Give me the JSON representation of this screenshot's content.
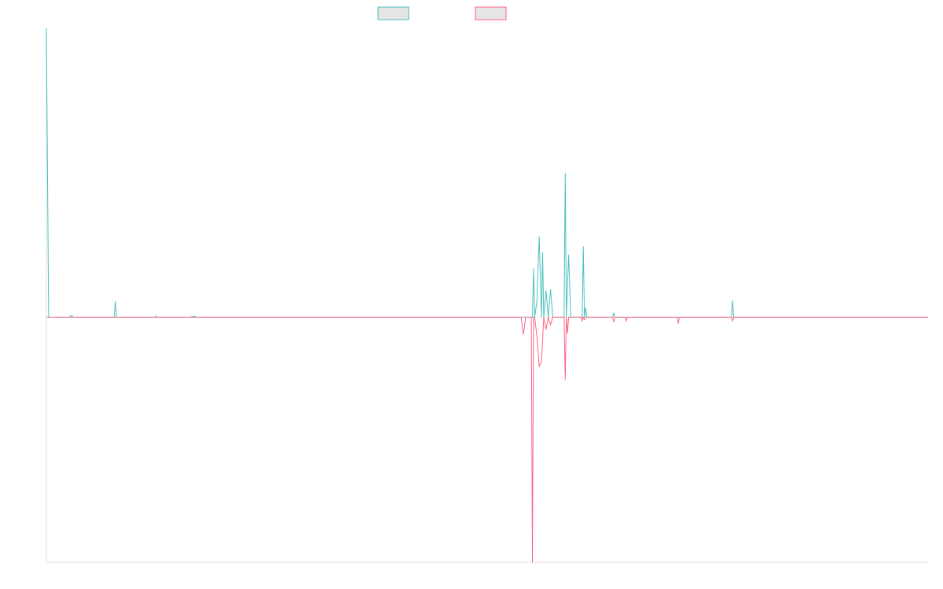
{
  "chart_data": {
    "type": "line",
    "title": "",
    "xlabel": "",
    "ylabel": "",
    "grid": false,
    "legend": "top-center",
    "x_count": 390,
    "ylim": [
      -1.0,
      1.18
    ],
    "series": [
      {
        "name": "",
        "color": "#4bc0c0",
        "points": [
          [
            0,
            1.18
          ],
          [
            1,
            0
          ],
          [
            10,
            0
          ],
          [
            11,
            0.008
          ],
          [
            12,
            0
          ],
          [
            30,
            0
          ],
          [
            30.5,
            0.065
          ],
          [
            31,
            0
          ],
          [
            48,
            0
          ],
          [
            48.5,
            0.005
          ],
          [
            49,
            0
          ],
          [
            64,
            0
          ],
          [
            64.5,
            0.005
          ],
          [
            65,
            0
          ],
          [
            65.5,
            0.005
          ],
          [
            66,
            0
          ],
          [
            215,
            0
          ],
          [
            215.5,
            0.2
          ],
          [
            216,
            0
          ],
          [
            217,
            0.065
          ],
          [
            218,
            0.33
          ],
          [
            219,
            0
          ],
          [
            219.5,
            0.265
          ],
          [
            220,
            0
          ],
          [
            221,
            0.11
          ],
          [
            222,
            0
          ],
          [
            223,
            0.115
          ],
          [
            224,
            0
          ],
          [
            229,
            0
          ],
          [
            229.5,
            0.59
          ],
          [
            230,
            0
          ],
          [
            231,
            0.255
          ],
          [
            232,
            0
          ],
          [
            237,
            0
          ],
          [
            237.5,
            0.29
          ],
          [
            238,
            0
          ],
          [
            238.5,
            0.04
          ],
          [
            239,
            0
          ],
          [
            250.5,
            0
          ],
          [
            251,
            0.02
          ],
          [
            251.5,
            0
          ],
          [
            303,
            0
          ],
          [
            303.5,
            0.07
          ],
          [
            304,
            0
          ],
          [
            390,
            0
          ]
        ]
      },
      {
        "name": "",
        "color": "#ff6384",
        "points": [
          [
            0,
            0
          ],
          [
            210,
            0
          ],
          [
            211,
            -0.07
          ],
          [
            212,
            0
          ],
          [
            214,
            0
          ],
          [
            214.5,
            0
          ],
          [
            215,
            -1.0
          ],
          [
            215.5,
            0
          ],
          [
            216,
            0
          ],
          [
            217,
            -0.08
          ],
          [
            218,
            -0.2
          ],
          [
            219,
            -0.18
          ],
          [
            220,
            0
          ],
          [
            221,
            -0.05
          ],
          [
            222,
            0
          ],
          [
            223,
            -0.03
          ],
          [
            224,
            0
          ],
          [
            229,
            0
          ],
          [
            229.5,
            -0.255
          ],
          [
            230,
            0
          ],
          [
            230.5,
            -0.065
          ],
          [
            231,
            0
          ],
          [
            236.5,
            0
          ],
          [
            237,
            -0.015
          ],
          [
            237.5,
            0
          ],
          [
            238,
            -0.01
          ],
          [
            238.5,
            0
          ],
          [
            250.5,
            0
          ],
          [
            251,
            -0.02
          ],
          [
            251.5,
            0
          ],
          [
            256,
            0
          ],
          [
            256.5,
            -0.015
          ],
          [
            257,
            0
          ],
          [
            279,
            0
          ],
          [
            279.5,
            -0.025
          ],
          [
            280,
            0
          ],
          [
            303,
            0
          ],
          [
            303.5,
            -0.015
          ],
          [
            304,
            0
          ],
          [
            390,
            0
          ]
        ]
      }
    ]
  }
}
